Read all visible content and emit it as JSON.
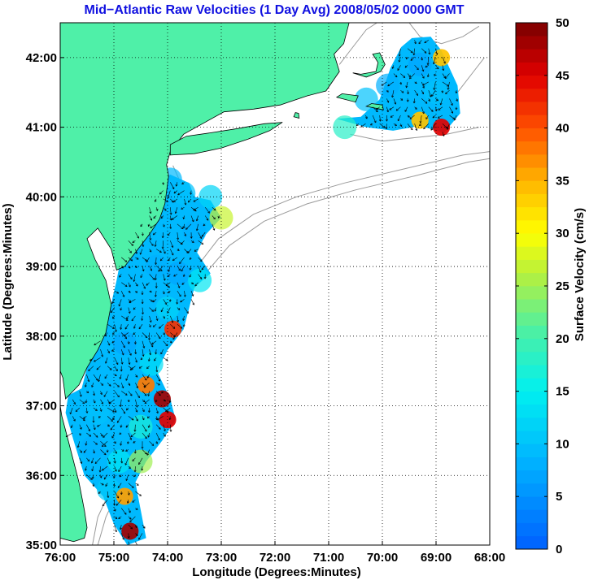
{
  "title": "Mid−Atlantic Raw Velocities (1 Day Avg) 2008/05/02 0000 GMT",
  "colors": {
    "title": "#1010e0",
    "land": "#4ff0a8",
    "coast": "#000000",
    "bathymetry": "#9a9a9a",
    "grid": "#000000",
    "arrow": "#000000"
  },
  "map": {
    "xlabel": "Longitude (Degrees:Minutes)",
    "ylabel": "Latitude (Degrees:Minutes)",
    "lon_range": [
      -76,
      -68
    ],
    "lat_range": [
      35,
      42.5
    ],
    "x_ticks": [
      {
        "value": -76,
        "label": "76:00"
      },
      {
        "value": -75,
        "label": "75:00"
      },
      {
        "value": -74,
        "label": "74:00"
      },
      {
        "value": -73,
        "label": "73:00"
      },
      {
        "value": -72,
        "label": "72:00"
      },
      {
        "value": -71,
        "label": "71:00"
      },
      {
        "value": -70,
        "label": "70:00"
      },
      {
        "value": -69,
        "label": "69:00"
      },
      {
        "value": -68,
        "label": "68:00"
      }
    ],
    "y_ticks": [
      {
        "value": 35,
        "label": "35:00"
      },
      {
        "value": 36,
        "label": "36:00"
      },
      {
        "value": 37,
        "label": "37:00"
      },
      {
        "value": 38,
        "label": "38:00"
      },
      {
        "value": 39,
        "label": "39:00"
      },
      {
        "value": 40,
        "label": "40:00"
      },
      {
        "value": 41,
        "label": "41:00"
      },
      {
        "value": 42,
        "label": "42:00"
      }
    ],
    "grid": "dotted"
  },
  "colorbar": {
    "label": "Surface Velocity (cm/s)",
    "range": [
      0,
      50
    ],
    "colormap": "jet",
    "ticks": [
      {
        "value": 0,
        "label": "0"
      },
      {
        "value": 5,
        "label": "5"
      },
      {
        "value": 10,
        "label": "10"
      },
      {
        "value": 15,
        "label": "15"
      },
      {
        "value": 20,
        "label": "20"
      },
      {
        "value": 25,
        "label": "25"
      },
      {
        "value": 30,
        "label": "30"
      },
      {
        "value": 35,
        "label": "35"
      },
      {
        "value": 40,
        "label": "40"
      },
      {
        "value": 45,
        "label": "45"
      },
      {
        "value": 50,
        "label": "50"
      }
    ]
  },
  "chart_data": {
    "type": "heatmap",
    "variable": "Surface Velocity (cm/s)",
    "cells": [
      {
        "lon": -73.95,
        "lat": 40.25,
        "speed": 9
      },
      {
        "lon": -73.7,
        "lat": 40.05,
        "speed": 10
      },
      {
        "lon": -73.2,
        "lat": 40.0,
        "speed": 12
      },
      {
        "lon": -73.0,
        "lat": 39.7,
        "speed": 27
      },
      {
        "lon": -74.0,
        "lat": 39.6,
        "speed": 9
      },
      {
        "lon": -73.5,
        "lat": 39.5,
        "speed": 8
      },
      {
        "lon": -74.2,
        "lat": 39.0,
        "speed": 8
      },
      {
        "lon": -73.8,
        "lat": 38.9,
        "speed": 7
      },
      {
        "lon": -73.4,
        "lat": 38.8,
        "speed": 14
      },
      {
        "lon": -74.5,
        "lat": 38.5,
        "speed": 9
      },
      {
        "lon": -74.0,
        "lat": 38.4,
        "speed": 12
      },
      {
        "lon": -73.9,
        "lat": 38.1,
        "speed": 42
      },
      {
        "lon": -74.8,
        "lat": 37.9,
        "speed": 7
      },
      {
        "lon": -74.3,
        "lat": 37.6,
        "speed": 13
      },
      {
        "lon": -74.4,
        "lat": 37.3,
        "speed": 38
      },
      {
        "lon": -74.1,
        "lat": 37.1,
        "speed": 48
      },
      {
        "lon": -74.0,
        "lat": 36.8,
        "speed": 45
      },
      {
        "lon": -75.3,
        "lat": 36.9,
        "speed": 10
      },
      {
        "lon": -74.9,
        "lat": 36.7,
        "speed": 9
      },
      {
        "lon": -74.5,
        "lat": 36.7,
        "speed": 17
      },
      {
        "lon": -75.4,
        "lat": 36.4,
        "speed": 8
      },
      {
        "lon": -74.9,
        "lat": 36.2,
        "speed": 14
      },
      {
        "lon": -74.5,
        "lat": 36.2,
        "speed": 25
      },
      {
        "lon": -75.1,
        "lat": 35.8,
        "speed": 11
      },
      {
        "lon": -74.8,
        "lat": 35.7,
        "speed": 36
      },
      {
        "lon": -74.7,
        "lat": 35.2,
        "speed": 48
      },
      {
        "lon": -70.3,
        "lat": 41.4,
        "speed": 10
      },
      {
        "lon": -69.9,
        "lat": 41.6,
        "speed": 8
      },
      {
        "lon": -69.3,
        "lat": 41.9,
        "speed": 7
      },
      {
        "lon": -69.0,
        "lat": 41.5,
        "speed": 10
      },
      {
        "lon": -68.9,
        "lat": 42.0,
        "speed": 34
      },
      {
        "lon": -69.3,
        "lat": 41.1,
        "speed": 34
      },
      {
        "lon": -68.9,
        "lat": 41.0,
        "speed": 45
      },
      {
        "lon": -70.7,
        "lat": 41.0,
        "speed": 18
      }
    ]
  }
}
